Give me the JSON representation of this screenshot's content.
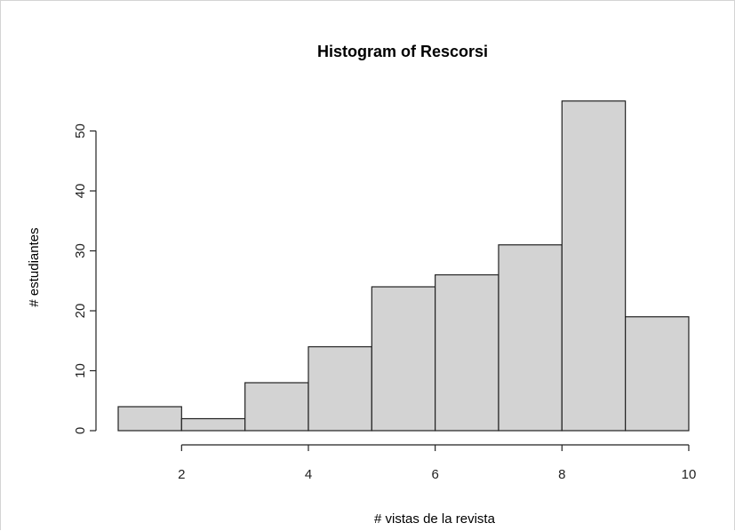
{
  "chart_data": {
    "type": "bar",
    "title": "Histogram of Rescorsi",
    "xlabel": "# vistas de la revista",
    "ylabel": "# estudiantes",
    "bins": [
      [
        1,
        2
      ],
      [
        2,
        3
      ],
      [
        3,
        4
      ],
      [
        4,
        5
      ],
      [
        5,
        6
      ],
      [
        6,
        7
      ],
      [
        7,
        8
      ],
      [
        8,
        9
      ],
      [
        9,
        10
      ]
    ],
    "values": [
      4,
      2,
      8,
      14,
      24,
      26,
      31,
      55,
      19
    ],
    "xlim": [
      1,
      10
    ],
    "ylim": [
      0,
      55
    ],
    "xticks": [
      2,
      4,
      6,
      8,
      10
    ],
    "yticks": [
      0,
      10,
      20,
      30,
      40,
      50
    ],
    "grid": false,
    "colors": {
      "bar_fill": "#d3d3d3",
      "bar_stroke": "#222222"
    }
  }
}
